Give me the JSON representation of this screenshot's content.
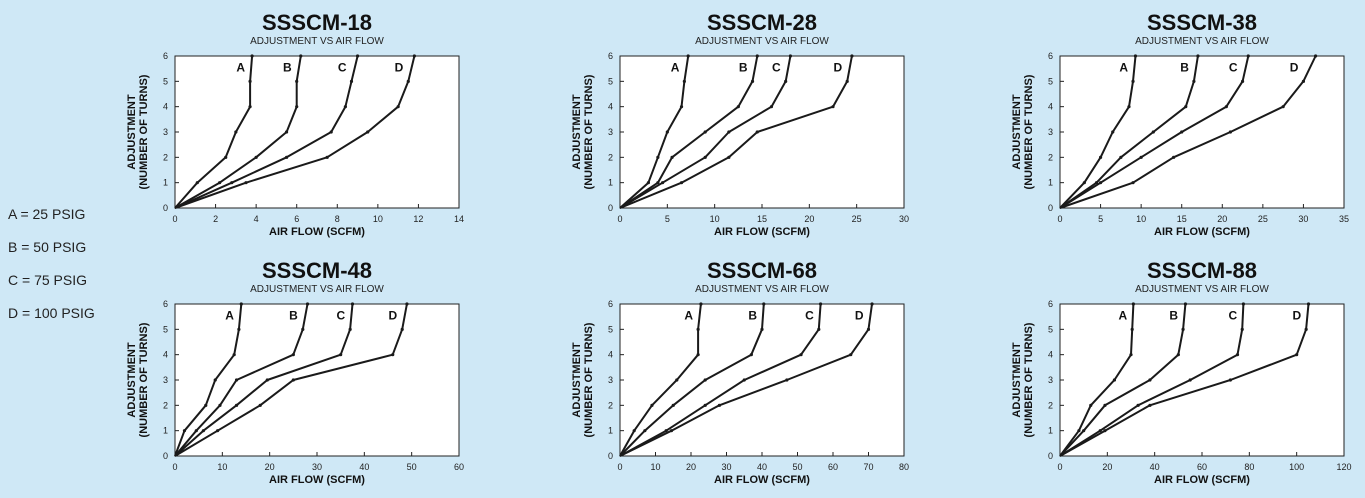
{
  "legend": [
    "A = 25 PSIG",
    "B = 50 PSIG",
    "C = 75 PSIG",
    "D = 100 PSIG"
  ],
  "chart_data": [
    {
      "type": "line",
      "title": "SSSCM-18",
      "subtitle": "ADJUSTMENT VS AIR FLOW",
      "xlabel": "AIR FLOW (SCFM)",
      "ylabel": "ADJUSTMENT (NUMBER OF TURNS)",
      "xlim": [
        0,
        14
      ],
      "ylim": [
        0,
        6
      ],
      "xticks": [
        0,
        2,
        4,
        6,
        8,
        10,
        12,
        14
      ],
      "yticks": [
        0,
        1,
        2,
        3,
        4,
        5,
        6
      ],
      "grid": false,
      "series": [
        {
          "name": "A",
          "x": [
            0,
            1.1,
            2.5,
            3.0,
            3.7,
            3.7,
            3.8
          ],
          "y": [
            0,
            1,
            2,
            3,
            4,
            5,
            6
          ]
        },
        {
          "name": "B",
          "x": [
            0,
            2.2,
            4.0,
            5.5,
            6.0,
            6.0,
            6.2
          ],
          "y": [
            0,
            1,
            2,
            3,
            4,
            5,
            6
          ]
        },
        {
          "name": "C",
          "x": [
            0,
            2.8,
            5.5,
            7.7,
            8.4,
            8.7,
            9.0
          ],
          "y": [
            0,
            1,
            2,
            3,
            4,
            5,
            6
          ]
        },
        {
          "name": "D",
          "x": [
            0,
            3.5,
            7.5,
            9.5,
            11.0,
            11.5,
            11.8
          ],
          "y": [
            0,
            1,
            2,
            3,
            4,
            5,
            6
          ]
        }
      ]
    },
    {
      "type": "line",
      "title": "SSSCM-28",
      "subtitle": "ADJUSTMENT VS AIR FLOW",
      "xlabel": "AIR FLOW (SCFM)",
      "ylabel": "ADJUSTMENT (NUMBER OF TURNS)",
      "xlim": [
        0,
        30
      ],
      "ylim": [
        0,
        6
      ],
      "xticks": [
        0,
        5,
        10,
        15,
        20,
        25,
        30
      ],
      "yticks": [
        0,
        1,
        2,
        3,
        4,
        5,
        6
      ],
      "grid": false,
      "series": [
        {
          "name": "A",
          "x": [
            0,
            3.0,
            4.0,
            5.0,
            6.5,
            6.8,
            7.2
          ],
          "y": [
            0,
            1,
            2,
            3,
            4,
            5,
            6
          ]
        },
        {
          "name": "B",
          "x": [
            0,
            4.0,
            5.5,
            9.0,
            12.5,
            14.0,
            14.5
          ],
          "y": [
            0,
            1,
            2,
            3,
            4,
            5,
            6
          ]
        },
        {
          "name": "C",
          "x": [
            0,
            4.5,
            9.0,
            11.5,
            16.0,
            17.5,
            18.0
          ],
          "y": [
            0,
            1,
            2,
            3,
            4,
            5,
            6
          ]
        },
        {
          "name": "D",
          "x": [
            0,
            6.5,
            11.5,
            14.5,
            22.5,
            24.0,
            24.5
          ],
          "y": [
            0,
            1,
            2,
            3,
            4,
            5,
            6
          ]
        }
      ]
    },
    {
      "type": "line",
      "title": "SSSCM-38",
      "subtitle": "ADJUSTMENT VS AIR FLOW",
      "xlabel": "AIR FLOW (SCFM)",
      "ylabel": "ADJUSTMENT (NUMBER OF TURNS)",
      "xlim": [
        0,
        35
      ],
      "ylim": [
        0,
        6
      ],
      "xticks": [
        0,
        5,
        10,
        15,
        20,
        25,
        30,
        35
      ],
      "yticks": [
        0,
        1,
        2,
        3,
        4,
        5,
        6
      ],
      "grid": false,
      "series": [
        {
          "name": "A",
          "x": [
            0,
            3.0,
            5.0,
            6.5,
            8.5,
            9.0,
            9.3
          ],
          "y": [
            0,
            1,
            2,
            3,
            4,
            5,
            6
          ]
        },
        {
          "name": "B",
          "x": [
            0,
            4.5,
            7.5,
            11.5,
            15.5,
            16.5,
            17.0
          ],
          "y": [
            0,
            1,
            2,
            3,
            4,
            5,
            6
          ]
        },
        {
          "name": "C",
          "x": [
            0,
            5.0,
            10.0,
            15.0,
            20.5,
            22.5,
            23.2
          ],
          "y": [
            0,
            1,
            2,
            3,
            4,
            5,
            6
          ]
        },
        {
          "name": "D",
          "x": [
            0,
            9.0,
            14.0,
            21.0,
            27.5,
            30.0,
            31.5
          ],
          "y": [
            0,
            1,
            2,
            3,
            4,
            5,
            6
          ]
        }
      ]
    },
    {
      "type": "line",
      "title": "SSSCM-48",
      "subtitle": "ADJUSTMENT VS AIR FLOW",
      "xlabel": "AIR FLOW (SCFM)",
      "ylabel": "ADJUSTMENT (NUMBER OF TURNS)",
      "xlim": [
        0,
        60
      ],
      "ylim": [
        0,
        6
      ],
      "xticks": [
        0,
        10,
        20,
        30,
        40,
        50,
        60
      ],
      "yticks": [
        0,
        1,
        2,
        3,
        4,
        5,
        6
      ],
      "grid": false,
      "series": [
        {
          "name": "A",
          "x": [
            0,
            2.0,
            6.5,
            8.5,
            12.5,
            13.5,
            14.0
          ],
          "y": [
            0,
            1,
            2,
            3,
            4,
            5,
            6
          ]
        },
        {
          "name": "B",
          "x": [
            0,
            4.5,
            9.5,
            13.0,
            25.0,
            27.0,
            28.0
          ],
          "y": [
            0,
            1,
            2,
            3,
            4,
            5,
            6
          ]
        },
        {
          "name": "C",
          "x": [
            0,
            6.0,
            13.0,
            19.5,
            35.0,
            37.0,
            37.5
          ],
          "y": [
            0,
            1,
            2,
            3,
            4,
            5,
            6
          ]
        },
        {
          "name": "D",
          "x": [
            0,
            9.0,
            18.0,
            25.0,
            46.0,
            48.0,
            49.0
          ],
          "y": [
            0,
            1,
            2,
            3,
            4,
            5,
            6
          ]
        }
      ]
    },
    {
      "type": "line",
      "title": "SSSCM-68",
      "subtitle": "ADJUSTMENT VS AIR FLOW",
      "xlabel": "AIR FLOW (SCFM)",
      "ylabel": "ADJUSTMENT (NUMBER OF TURNS)",
      "xlim": [
        0,
        80
      ],
      "ylim": [
        0,
        6
      ],
      "xticks": [
        0,
        10,
        20,
        30,
        40,
        50,
        60,
        70,
        80
      ],
      "yticks": [
        0,
        1,
        2,
        3,
        4,
        5,
        6
      ],
      "grid": false,
      "series": [
        {
          "name": "A",
          "x": [
            0,
            4.0,
            9.0,
            16.0,
            22.0,
            22.0,
            22.8
          ],
          "y": [
            0,
            1,
            2,
            3,
            4,
            5,
            6
          ]
        },
        {
          "name": "B",
          "x": [
            0,
            7.0,
            15.0,
            24.0,
            37.0,
            40.0,
            40.5
          ],
          "y": [
            0,
            1,
            2,
            3,
            4,
            5,
            6
          ]
        },
        {
          "name": "C",
          "x": [
            0,
            13.0,
            24.0,
            35.0,
            51.0,
            56.0,
            56.5
          ],
          "y": [
            0,
            1,
            2,
            3,
            4,
            5,
            6
          ]
        },
        {
          "name": "D",
          "x": [
            0,
            14.5,
            28.0,
            47.0,
            65.0,
            70.0,
            71.0
          ],
          "y": [
            0,
            1,
            2,
            3,
            4,
            5,
            6
          ]
        }
      ]
    },
    {
      "type": "line",
      "title": "SSSCM-88",
      "subtitle": "ADJUSTMENT VS AIR FLOW",
      "xlabel": "AIR FLOW (SCFM)",
      "ylabel": "ADJUSTMENT (NUMBER OF TURNS)",
      "xlim": [
        0,
        120
      ],
      "ylim": [
        0,
        6
      ],
      "xticks": [
        0,
        20,
        40,
        60,
        80,
        100,
        120
      ],
      "yticks": [
        0,
        1,
        2,
        3,
        4,
        5,
        6
      ],
      "grid": false,
      "series": [
        {
          "name": "A",
          "x": [
            0,
            8.0,
            13.0,
            23.0,
            30.0,
            30.5,
            31.0
          ],
          "y": [
            0,
            1,
            2,
            3,
            4,
            5,
            6
          ]
        },
        {
          "name": "B",
          "x": [
            0,
            10.0,
            19.0,
            38.0,
            50.0,
            52.0,
            53.0
          ],
          "y": [
            0,
            1,
            2,
            3,
            4,
            5,
            6
          ]
        },
        {
          "name": "C",
          "x": [
            0,
            17.0,
            33.0,
            55.0,
            75.0,
            77.0,
            77.5
          ],
          "y": [
            0,
            1,
            2,
            3,
            4,
            5,
            6
          ]
        },
        {
          "name": "D",
          "x": [
            0,
            19.0,
            38.0,
            72.0,
            100.0,
            104.0,
            105.0
          ],
          "y": [
            0,
            1,
            2,
            3,
            4,
            5,
            6
          ]
        }
      ]
    }
  ]
}
